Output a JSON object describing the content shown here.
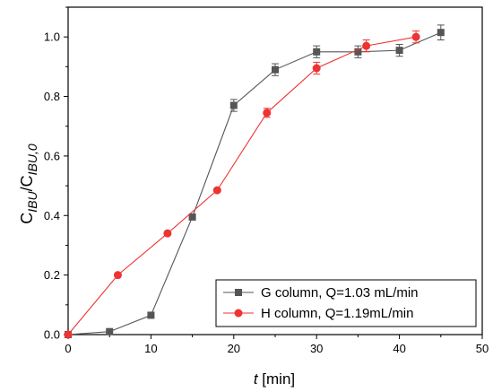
{
  "chart_data": {
    "type": "line",
    "xlabel": {
      "italic": "t",
      "rest": " [min]"
    },
    "ylabel": {
      "base1": "C",
      "sub1": "IBU",
      "slash": "/",
      "base2": "C",
      "sub2": "IBU,0"
    },
    "xlim": [
      0,
      50
    ],
    "ylim": [
      0,
      1.1
    ],
    "x_ticks": [
      0,
      10,
      20,
      30,
      40,
      50
    ],
    "y_ticks": [
      0.0,
      0.2,
      0.4,
      0.6,
      0.8,
      1.0
    ],
    "y_tick_labels": [
      "0.0",
      "0.2",
      "0.4",
      "0.6",
      "0.8",
      "1.0"
    ],
    "x_tick_labels": [
      "0",
      "10",
      "20",
      "30",
      "40",
      "50"
    ],
    "grid": false,
    "legend_position": "bottom-right",
    "series": [
      {
        "name": "G column, Q=1.03 mL/min",
        "color": "#555555",
        "marker": "square",
        "x": [
          0,
          5,
          10,
          15,
          20,
          25,
          30,
          35,
          40,
          45
        ],
        "y": [
          0.0,
          0.01,
          0.065,
          0.395,
          0.77,
          0.89,
          0.95,
          0.95,
          0.955,
          1.015
        ],
        "err": [
          0,
          0,
          0,
          0,
          0.02,
          0.02,
          0.02,
          0.02,
          0.02,
          0.025
        ]
      },
      {
        "name": "H column, Q=1.19mL/min",
        "color": "#ee3333",
        "marker": "circle",
        "x": [
          0,
          6,
          12,
          18,
          24,
          30,
          36,
          42
        ],
        "y": [
          0.0,
          0.2,
          0.34,
          0.485,
          0.745,
          0.895,
          0.97,
          1.0
        ],
        "err": [
          0,
          0,
          0,
          0,
          0.015,
          0.02,
          0.02,
          0.02
        ]
      }
    ]
  }
}
